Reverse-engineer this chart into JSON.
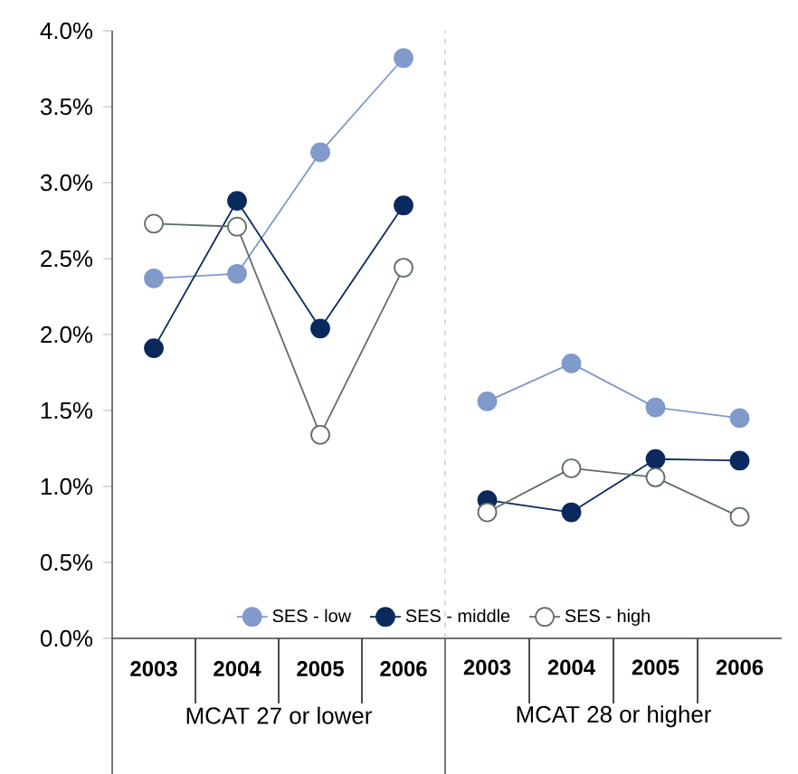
{
  "chart_data": [
    {
      "type": "line",
      "categories": [
        "2003",
        "2004",
        "2005",
        "2006"
      ],
      "xlabel": "MCAT 27 or lower",
      "ylim": [
        0,
        4.0
      ],
      "yticks": [
        {
          "value": 0,
          "label": "0.0%"
        },
        {
          "value": 0.5,
          "label": "0.5%"
        },
        {
          "value": 1.0,
          "label": "1.0%"
        },
        {
          "value": 1.5,
          "label": "1.5%"
        },
        {
          "value": 2.0,
          "label": "2.0%"
        },
        {
          "value": 2.5,
          "label": "2.5%"
        },
        {
          "value": 3.0,
          "label": "3.0%"
        },
        {
          "value": 3.5,
          "label": "3.5%"
        },
        {
          "value": 4.0,
          "label": "4.0%"
        }
      ],
      "marker": "circle",
      "legend": "bottom",
      "series": [
        {
          "name": "SES - low",
          "color": "#7f9acb",
          "values": [
            2.37,
            2.4,
            3.2,
            3.82
          ]
        },
        {
          "name": "SES - middle",
          "color": "#0a2a5e",
          "values": [
            1.91,
            2.88,
            2.04,
            2.85
          ]
        },
        {
          "name": "SES - high",
          "color": "#5f6f66",
          "values": [
            2.73,
            2.71,
            1.34,
            2.44
          ]
        }
      ]
    },
    {
      "type": "line",
      "categories": [
        "2003",
        "2004",
        "2005",
        "2006"
      ],
      "xlabel": "MCAT 28 or higher",
      "ylim": [
        0,
        4.0
      ],
      "tick_labels": "x",
      "marker": "circle",
      "series": [
        {
          "color": "#7f9acb",
          "values": [
            1.56,
            1.81,
            1.52,
            1.45
          ]
        },
        {
          "color": "#0a2a5e",
          "values": [
            0.91,
            0.83,
            1.18,
            1.17
          ]
        },
        {
          "color": "#5f6f66",
          "values": [
            0.83,
            1.12,
            1.06,
            0.8
          ]
        }
      ]
    }
  ]
}
